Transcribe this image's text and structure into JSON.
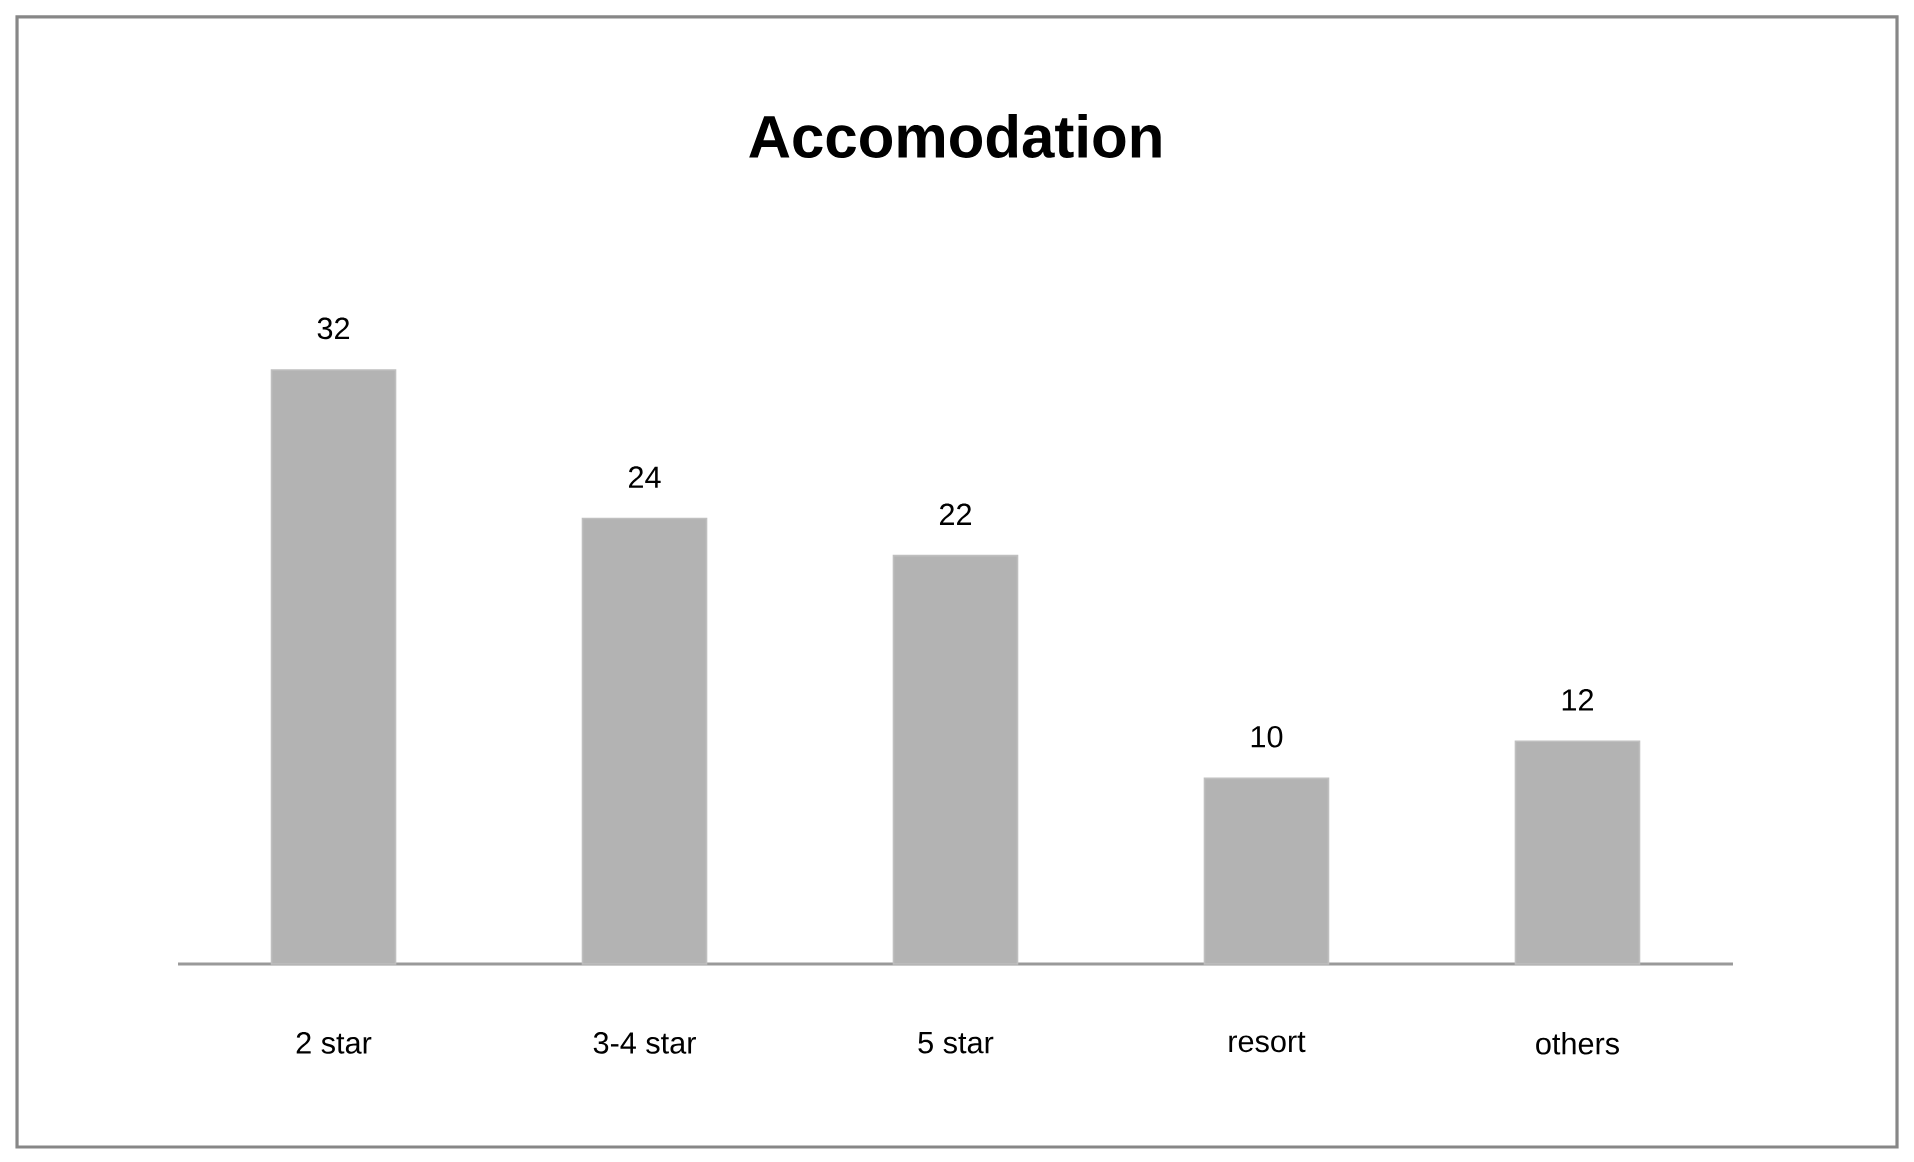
{
  "chart_data": {
    "type": "bar",
    "title": "Accomodation",
    "categories": [
      "2 star",
      "3-4 star",
      "5 star",
      "resort",
      "others"
    ],
    "values": [
      32,
      24,
      22,
      10,
      12
    ],
    "color": "#b3b3b3",
    "data_labels": true
  }
}
